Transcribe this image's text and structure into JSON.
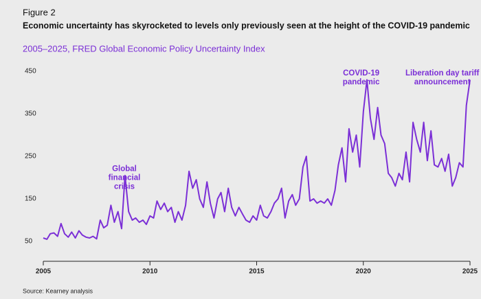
{
  "chart_data": {
    "type": "line",
    "figure_label": "Figure 2",
    "title": "Economic uncertainty has skyrocketed to levels only previously seen at the height of the COVID-19 pandemic",
    "subtitle": "2005–2025, FRED Global Economic Policy Uncertainty Index",
    "source": "Source: Kearney analysis",
    "color": "#7b2fd6",
    "xlim": [
      2005,
      2025
    ],
    "xticks": [
      2005,
      2010,
      2015,
      2020,
      2025
    ],
    "ylim": [
      0,
      465
    ],
    "yticks": [
      50,
      150,
      250,
      350,
      450
    ],
    "grid": false,
    "annotations": [
      {
        "lines": [
          "Global",
          "financial",
          "crisis"
        ],
        "x": 2008.8,
        "y": 220
      },
      {
        "lines": [
          "COVID-19",
          "pandemic"
        ],
        "x": 2019.9,
        "y": 445
      },
      {
        "lines": [
          "Liberation day tariff",
          "announcement"
        ],
        "x": 2023.7,
        "y": 445
      }
    ],
    "x": [
      2005,
      2005.17,
      2005.33,
      2005.5,
      2005.67,
      2005.83,
      2006,
      2006.17,
      2006.33,
      2006.5,
      2006.67,
      2006.83,
      2007,
      2007.17,
      2007.33,
      2007.5,
      2007.67,
      2007.83,
      2008,
      2008.17,
      2008.33,
      2008.5,
      2008.67,
      2008.83,
      2009,
      2009.17,
      2009.33,
      2009.5,
      2009.67,
      2009.83,
      2010,
      2010.17,
      2010.33,
      2010.5,
      2010.67,
      2010.83,
      2011,
      2011.17,
      2011.33,
      2011.5,
      2011.67,
      2011.83,
      2012,
      2012.17,
      2012.33,
      2012.5,
      2012.67,
      2012.83,
      2013,
      2013.17,
      2013.33,
      2013.5,
      2013.67,
      2013.83,
      2014,
      2014.17,
      2014.33,
      2014.5,
      2014.67,
      2014.83,
      2015,
      2015.17,
      2015.33,
      2015.5,
      2015.67,
      2015.83,
      2016,
      2016.17,
      2016.33,
      2016.5,
      2016.67,
      2016.83,
      2017,
      2017.17,
      2017.33,
      2017.5,
      2017.67,
      2017.83,
      2018,
      2018.17,
      2018.33,
      2018.5,
      2018.67,
      2018.83,
      2019,
      2019.17,
      2019.33,
      2019.5,
      2019.67,
      2019.83,
      2020,
      2020.17,
      2020.33,
      2020.5,
      2020.67,
      2020.83,
      2021,
      2021.17,
      2021.33,
      2021.5,
      2021.67,
      2021.83,
      2022,
      2022.17,
      2022.33,
      2022.5,
      2022.67,
      2022.83,
      2023,
      2023.17,
      2023.33,
      2023.5,
      2023.67,
      2023.83,
      2024,
      2024.17,
      2024.33,
      2024.5,
      2024.67,
      2024.83,
      2025
    ],
    "values": [
      58,
      55,
      68,
      70,
      62,
      92,
      68,
      60,
      72,
      58,
      75,
      65,
      60,
      58,
      62,
      56,
      100,
      82,
      88,
      135,
      95,
      120,
      80,
      205,
      120,
      100,
      105,
      95,
      100,
      90,
      110,
      105,
      145,
      125,
      140,
      120,
      130,
      95,
      120,
      100,
      135,
      215,
      175,
      195,
      150,
      130,
      190,
      140,
      105,
      150,
      165,
      120,
      175,
      130,
      110,
      130,
      115,
      100,
      95,
      110,
      100,
      135,
      110,
      105,
      120,
      140,
      150,
      175,
      105,
      145,
      160,
      135,
      150,
      225,
      250,
      145,
      150,
      140,
      145,
      140,
      150,
      135,
      170,
      230,
      270,
      190,
      315,
      260,
      300,
      225,
      355,
      430,
      340,
      290,
      365,
      300,
      280,
      210,
      200,
      180,
      210,
      195,
      260,
      190,
      330,
      290,
      260,
      330,
      240,
      310,
      230,
      225,
      245,
      215,
      255,
      180,
      200,
      235,
      225,
      370,
      430
    ]
  }
}
